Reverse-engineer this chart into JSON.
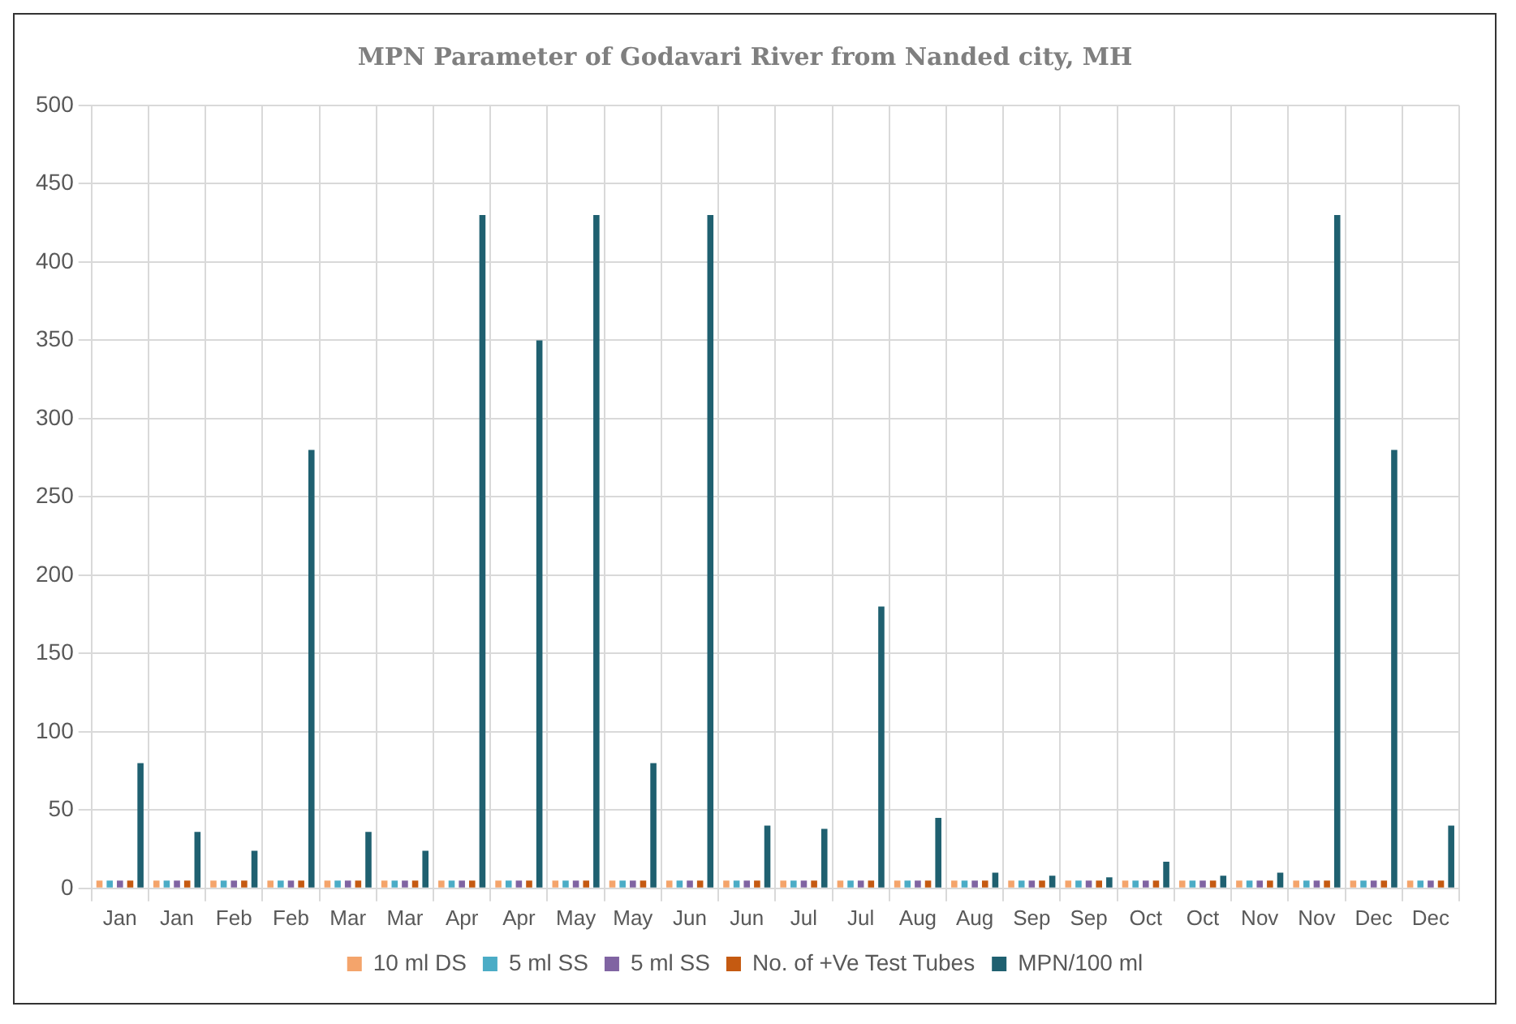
{
  "chart_data": {
    "type": "bar",
    "title": "MPN Parameter of Godavari River from Nanded city, MH",
    "categories": [
      "Jan",
      "Jan",
      "Feb",
      "Feb",
      "Mar",
      "Mar",
      "Apr",
      "Apr",
      "May",
      "May",
      "Jun",
      "Jun",
      "Jul",
      "Jul",
      "Aug",
      "Aug",
      "Sep",
      "Sep",
      "Oct",
      "Oct",
      "Nov",
      "Nov",
      "Dec",
      "Dec"
    ],
    "series": [
      {
        "name": "10 ml DS",
        "color": "#f4a46b",
        "values": [
          5,
          5,
          5,
          5,
          5,
          5,
          5,
          5,
          5,
          5,
          5,
          5,
          5,
          5,
          5,
          5,
          5,
          5,
          5,
          5,
          5,
          5,
          5,
          5
        ]
      },
      {
        "name": "5 ml SS",
        "color": "#4bacc6",
        "values": [
          5,
          5,
          5,
          5,
          5,
          5,
          5,
          5,
          5,
          5,
          5,
          5,
          5,
          5,
          5,
          5,
          5,
          5,
          5,
          5,
          5,
          5,
          5,
          5
        ]
      },
      {
        "name": "5 ml SS",
        "color": "#8064a2",
        "values": [
          5,
          5,
          5,
          5,
          5,
          5,
          5,
          5,
          5,
          5,
          5,
          5,
          5,
          5,
          5,
          5,
          5,
          5,
          5,
          5,
          5,
          5,
          5,
          5
        ]
      },
      {
        "name": "No. of +Ve Test Tubes",
        "color": "#c55a11",
        "values": [
          5,
          5,
          5,
          5,
          5,
          5,
          5,
          5,
          5,
          5,
          5,
          5,
          5,
          5,
          5,
          5,
          5,
          5,
          5,
          5,
          5,
          5,
          5,
          5
        ]
      },
      {
        "name": "MPN/100 ml",
        "color": "#1f6070",
        "values": [
          80,
          36,
          24,
          280,
          36,
          24,
          430,
          350,
          430,
          80,
          430,
          40,
          38,
          180,
          45,
          10,
          8,
          7,
          17,
          8,
          10,
          430,
          280,
          40
        ]
      }
    ],
    "ylim": [
      0,
      500
    ],
    "yticks": [
      0,
      50,
      100,
      150,
      200,
      250,
      300,
      350,
      400,
      450,
      500
    ],
    "grid": true,
    "legend": "bottom"
  }
}
